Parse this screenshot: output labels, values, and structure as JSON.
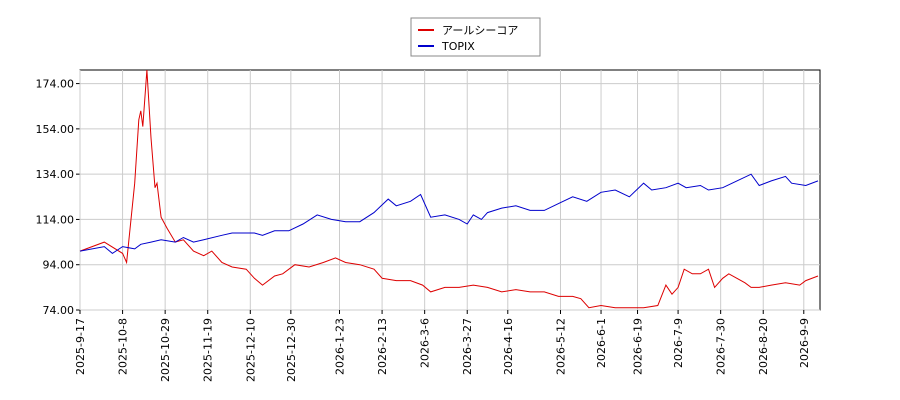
{
  "chart_data": {
    "type": "line",
    "xlim": [
      "2025-9-17",
      "2026-9-17"
    ],
    "xticks": [
      "2025-9-17",
      "2025-10-8",
      "2025-10-29",
      "2025-11-19",
      "2025-12-10",
      "2025-12-30",
      "2026-1-23",
      "2026-2-13",
      "2026-3-6",
      "2026-3-27",
      "2026-4-16",
      "2026-5-12",
      "2026-6-1",
      "2026-6-19",
      "2026-7-9",
      "2026-7-30",
      "2026-8-20",
      "2026-9-9"
    ],
    "ylim": [
      74,
      180
    ],
    "yticks": [
      {
        "value": 74,
        "label": "74.00"
      },
      {
        "value": 94,
        "label": "94.00"
      },
      {
        "value": 114,
        "label": "114.00"
      },
      {
        "value": 134,
        "label": "134.00"
      },
      {
        "value": 154,
        "label": "154.00"
      },
      {
        "value": 174,
        "label": "174.00"
      }
    ],
    "grid": true,
    "legend": "top",
    "series": [
      {
        "name": "アールシーコア",
        "color": "#dd0000",
        "x": [
          "2025-9-17",
          "2025-9-29",
          "2025-10-8",
          "2025-10-10",
          "2025-10-14",
          "2025-10-16",
          "2025-10-17",
          "2025-10-18",
          "2025-10-20",
          "2025-10-22",
          "2025-10-24",
          "2025-10-25",
          "2025-10-27",
          "2025-10-30",
          "2025-11-3",
          "2025-11-7",
          "2025-11-12",
          "2025-11-17",
          "2025-11-21",
          "2025-11-26",
          "2025-12-1",
          "2025-12-8",
          "2025-12-12",
          "2025-12-16",
          "2025-12-22",
          "2025-12-26",
          "2026-1-1",
          "2026-1-8",
          "2026-1-15",
          "2026-1-21",
          "2026-1-26",
          "2026-2-2",
          "2026-2-9",
          "2026-2-13",
          "2026-2-20",
          "2026-2-27",
          "2026-3-5",
          "2026-3-9",
          "2026-3-16",
          "2026-3-23",
          "2026-3-30",
          "2026-4-6",
          "2026-4-13",
          "2026-4-20",
          "2026-4-27",
          "2026-5-4",
          "2026-5-11",
          "2026-5-18",
          "2026-5-22",
          "2026-5-26",
          "2026-6-1",
          "2026-6-8",
          "2026-6-15",
          "2026-6-22",
          "2026-6-29",
          "2026-7-3",
          "2026-7-6",
          "2026-7-9",
          "2026-7-12",
          "2026-7-16",
          "2026-7-20",
          "2026-7-24",
          "2026-7-27",
          "2026-7-31",
          "2026-8-3",
          "2026-8-7",
          "2026-8-11",
          "2026-8-14",
          "2026-8-18",
          "2026-8-24",
          "2026-8-31",
          "2026-9-7",
          "2026-9-10",
          "2026-9-16"
        ],
        "values": [
          100,
          104,
          99,
          95,
          130,
          158,
          162,
          155,
          180,
          150,
          128,
          130,
          115,
          110,
          104,
          105,
          100,
          98,
          100,
          95,
          93,
          92,
          88,
          85,
          89,
          90,
          94,
          93,
          95,
          97,
          95,
          94,
          92,
          88,
          87,
          87,
          85,
          82,
          84,
          84,
          85,
          84,
          82,
          83,
          82,
          82,
          80,
          80,
          79,
          75,
          76,
          75,
          75,
          75,
          76,
          85,
          81,
          84,
          92,
          90,
          90,
          92,
          84,
          88,
          90,
          88,
          86,
          84,
          84,
          85,
          86,
          85,
          87,
          89
        ]
      },
      {
        "name": "TOPIX",
        "color": "#0000cc",
        "x": [
          "2025-9-17",
          "2025-9-29",
          "2025-10-3",
          "2025-10-8",
          "2025-10-14",
          "2025-10-17",
          "2025-10-22",
          "2025-10-27",
          "2025-11-3",
          "2025-11-7",
          "2025-11-12",
          "2025-11-17",
          "2025-11-26",
          "2025-12-1",
          "2025-12-8",
          "2025-12-12",
          "2025-12-16",
          "2025-12-22",
          "2025-12-29",
          "2026-1-5",
          "2026-1-12",
          "2026-1-19",
          "2026-1-26",
          "2026-2-2",
          "2026-2-9",
          "2026-2-16",
          "2026-2-20",
          "2026-2-27",
          "2026-3-4",
          "2026-3-9",
          "2026-3-16",
          "2026-3-23",
          "2026-3-27",
          "2026-3-30",
          "2026-4-3",
          "2026-4-6",
          "2026-4-13",
          "2026-4-20",
          "2026-4-27",
          "2026-5-4",
          "2026-5-11",
          "2026-5-18",
          "2026-5-25",
          "2026-6-1",
          "2026-6-8",
          "2026-6-15",
          "2026-6-22",
          "2026-6-26",
          "2026-7-3",
          "2026-7-9",
          "2026-7-13",
          "2026-7-20",
          "2026-7-24",
          "2026-7-31",
          "2026-8-7",
          "2026-8-14",
          "2026-8-18",
          "2026-8-24",
          "2026-8-31",
          "2026-9-3",
          "2026-9-10",
          "2026-9-16"
        ],
        "values": [
          100,
          102,
          99,
          102,
          101,
          103,
          104,
          105,
          104,
          106,
          104,
          105,
          107,
          108,
          108,
          108,
          107,
          109,
          109,
          112,
          116,
          114,
          113,
          113,
          117,
          123,
          120,
          122,
          125,
          115,
          116,
          114,
          112,
          116,
          114,
          117,
          119,
          120,
          118,
          118,
          121,
          124,
          122,
          126,
          127,
          124,
          130,
          127,
          128,
          130,
          128,
          129,
          127,
          128,
          131,
          134,
          129,
          131,
          133,
          130,
          129,
          131
        ]
      }
    ]
  }
}
